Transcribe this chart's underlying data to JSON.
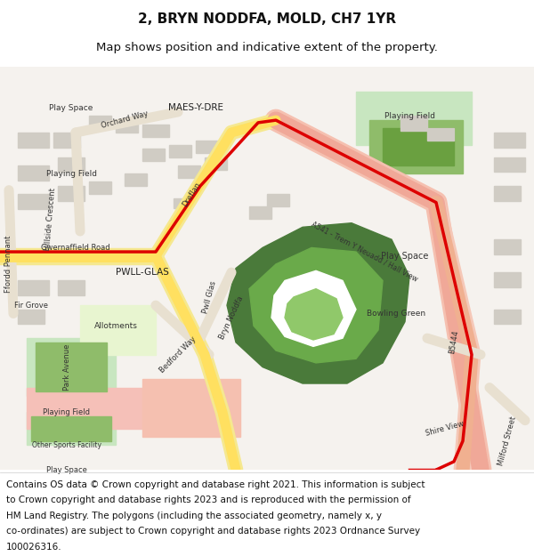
{
  "title": "2, BRYN NODDFA, MOLD, CH7 1YR",
  "subtitle": "Map shows position and indicative extent of the property.",
  "footer_lines": [
    "Contains OS data © Crown copyright and database right 2021. This information is subject",
    "to Crown copyright and database rights 2023 and is reproduced with the permission of",
    "HM Land Registry. The polygons (including the associated geometry, namely x, y",
    "co-ordinates) are subject to Crown copyright and database rights 2023 Ordnance Survey",
    "100026316."
  ],
  "title_fontsize": 11,
  "subtitle_fontsize": 9.5,
  "footer_fontsize": 7.5,
  "bg_color": "#ffffff",
  "map_bg": "#f5f2ee",
  "road_yellow_outer": "#f5e890",
  "road_yellow_inner": "#ffe060",
  "road_pink_outer": "#f5c0b0",
  "road_pink_inner": "#f0a898",
  "road_b_outer": "#f5c8b8",
  "road_b_inner": "#f0b090",
  "road_gray": "#e8e0d0",
  "green_dark": "#4a7a3a",
  "green_mid": "#6aaa4a",
  "green_light": "#c8e6c0",
  "green_field": "#8fbc6a",
  "green_field_inner": "#6aa040",
  "green_bowl_inner": "#90c86a",
  "pink_area": "#f5c0b8",
  "pink_area2": "#f5c0b0",
  "allot_color": "#e8f5d0",
  "building_gray": "#d0ccc4",
  "property_red": "#dd0000",
  "text_dark": "#222222",
  "text_road": "#333333"
}
